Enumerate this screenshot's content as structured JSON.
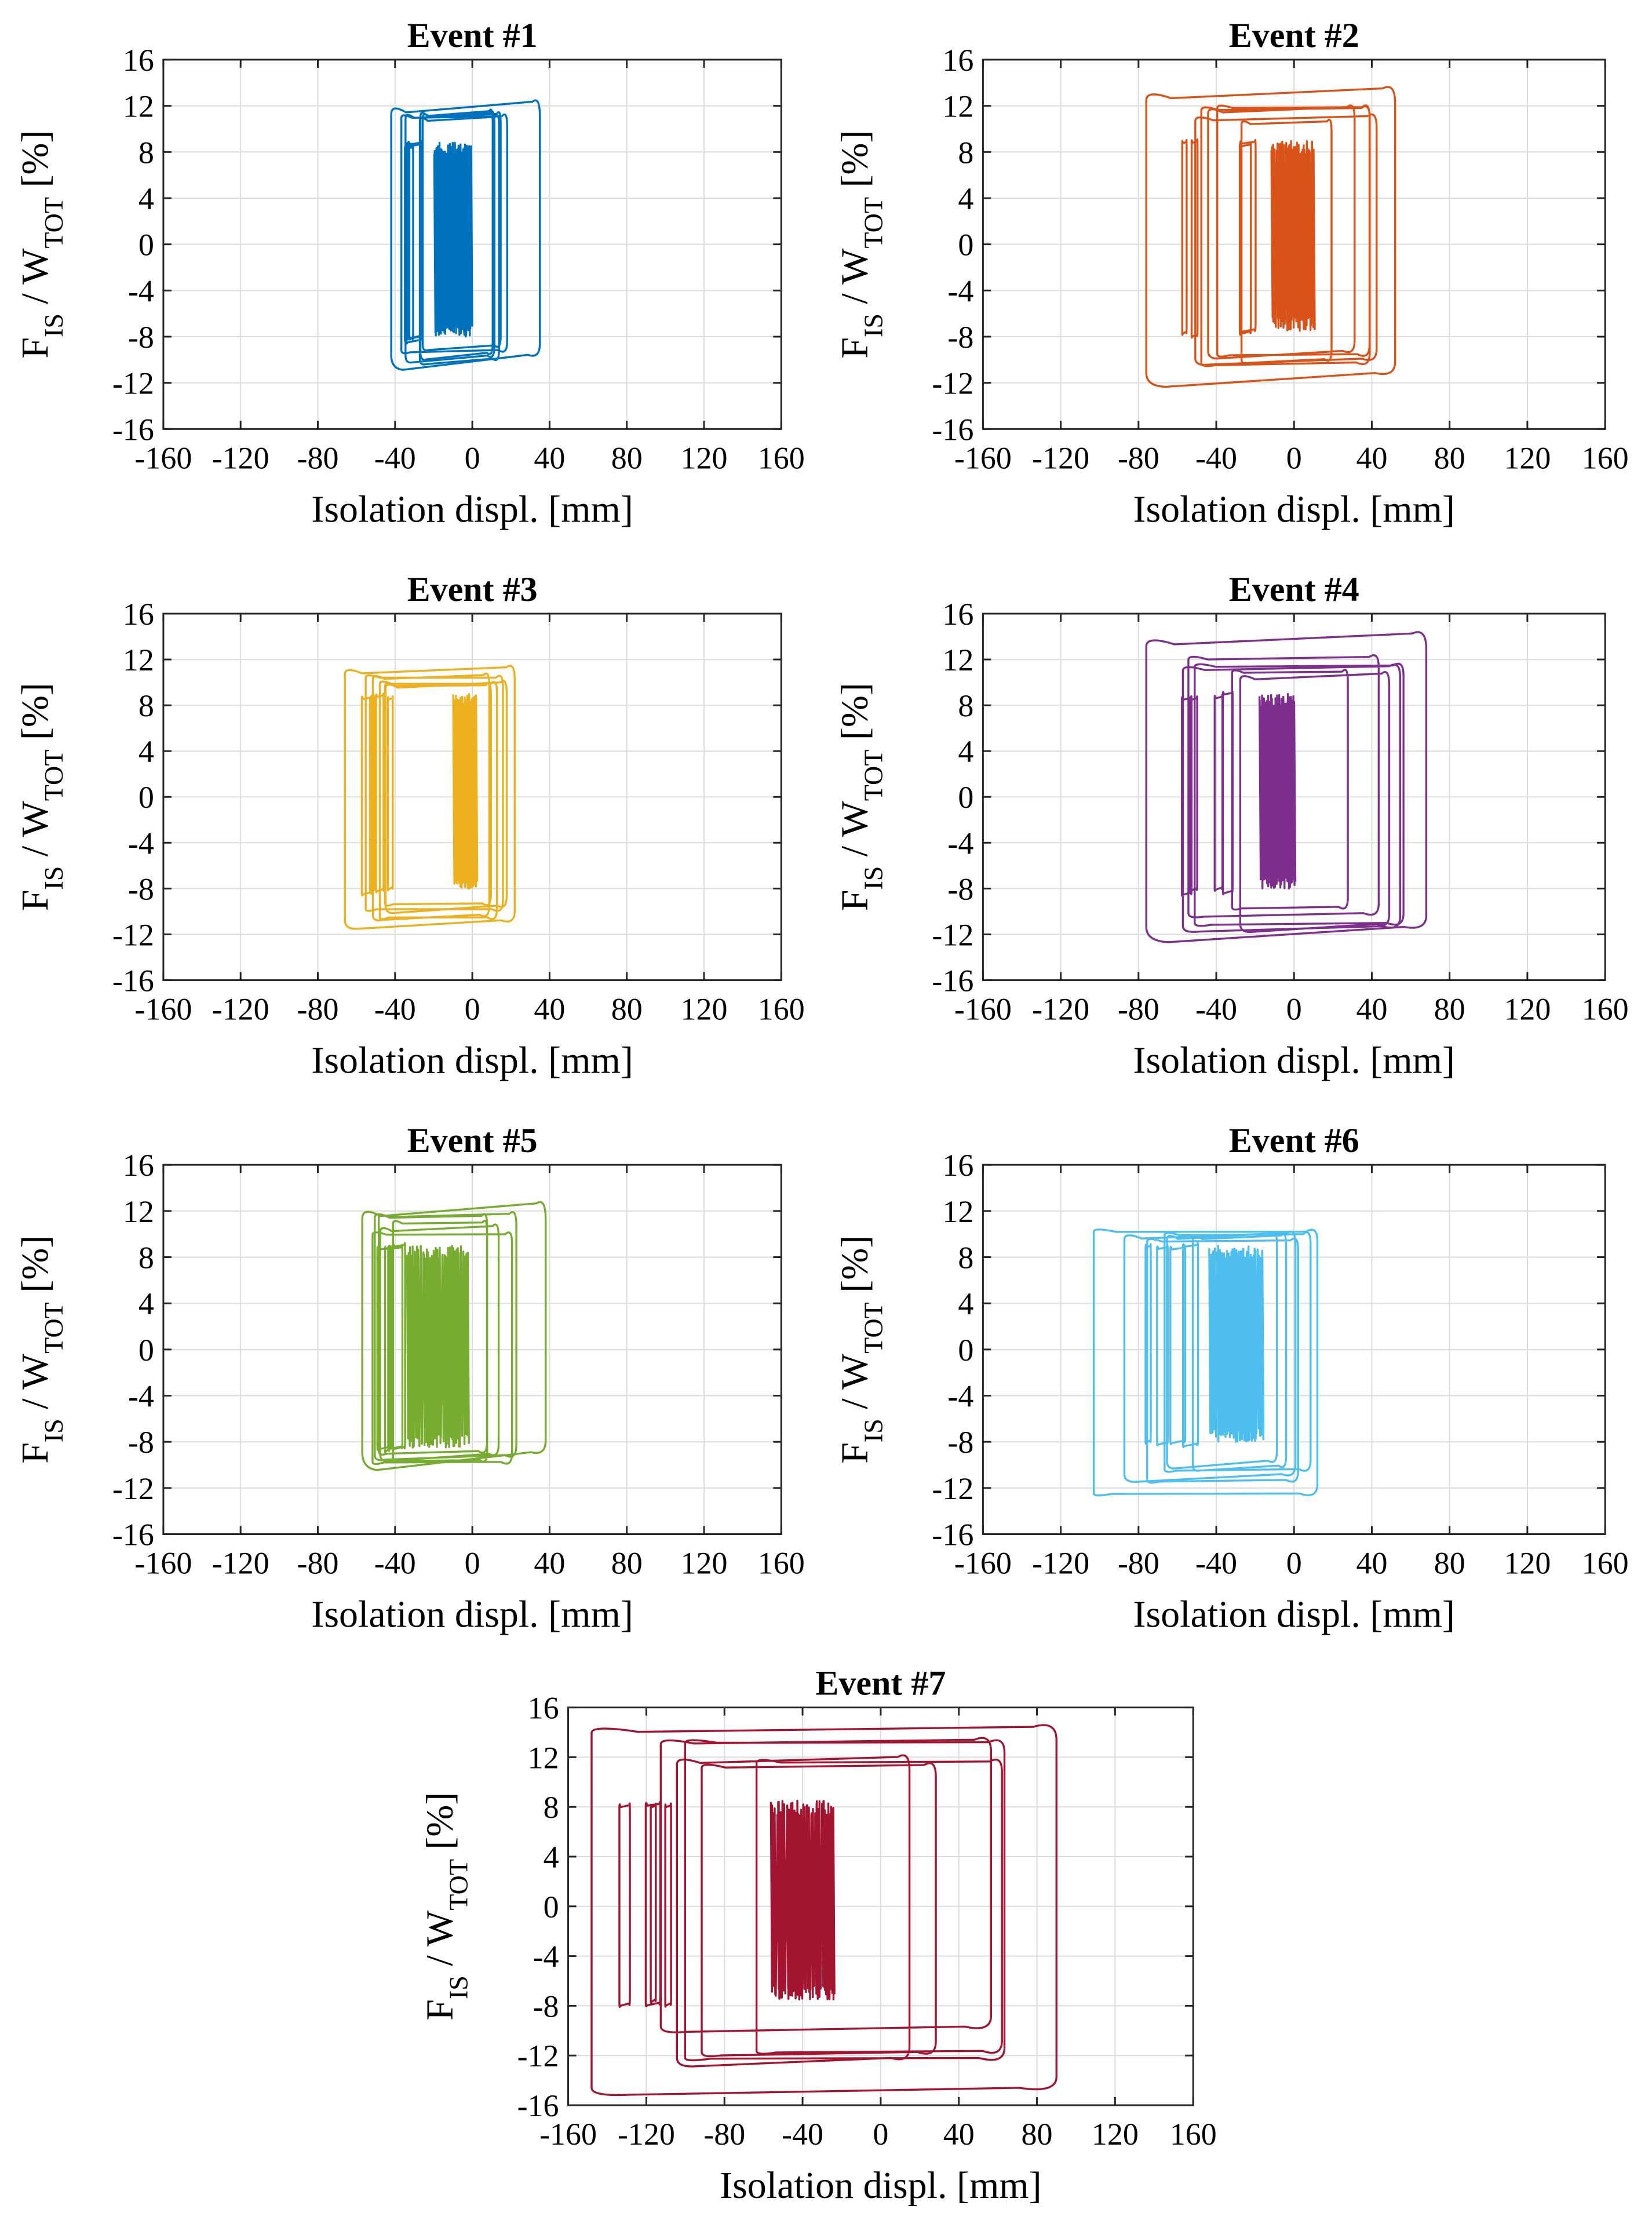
{
  "figure": {
    "x_ticks": [
      -160,
      -120,
      -80,
      -40,
      0,
      40,
      80,
      120,
      160
    ],
    "y_ticks": [
      -16,
      -12,
      -8,
      -4,
      0,
      4,
      8,
      12,
      16
    ],
    "xlabel": "Isolation displ. [mm]",
    "ylabel_parts": {
      "f": "F",
      "f_sub": "IS",
      "sep": " / W",
      "w_sub": "TOT",
      "unit": " [%]"
    }
  },
  "chart_data": [
    {
      "type": "line",
      "title": "Event #1",
      "color": "#0072bd",
      "xlabel": "Isolation displ. [mm]",
      "ylabel": "F_IS / W_TOT [%]",
      "xlim": [
        -160,
        160
      ],
      "ylim": [
        -16,
        16
      ],
      "grid": true,
      "envelope": {
        "x_min": -42,
        "x_max": 35,
        "y_min": -10.5,
        "y_max": 11.8
      },
      "dense_band": {
        "x_min": -20,
        "x_max": -1,
        "y_min": -8,
        "y_max": 8.8
      }
    },
    {
      "type": "line",
      "title": "Event #2",
      "color": "#d95319",
      "xlabel": "Isolation displ. [mm]",
      "ylabel": "F_IS / W_TOT [%]",
      "xlim": [
        -160,
        160
      ],
      "ylim": [
        -16,
        16
      ],
      "grid": true,
      "envelope": {
        "x_min": -76,
        "x_max": 52,
        "y_min": -12,
        "y_max": 13
      },
      "dense_band": {
        "x_min": -12,
        "x_max": 10,
        "y_min": -7.5,
        "y_max": 9
      }
    },
    {
      "type": "line",
      "title": "Event #3",
      "color": "#edb120",
      "xlabel": "Isolation displ. [mm]",
      "ylabel": "F_IS / W_TOT [%]",
      "xlim": [
        -160,
        160
      ],
      "ylim": [
        -16,
        16
      ],
      "grid": true,
      "envelope": {
        "x_min": -66,
        "x_max": 22,
        "y_min": -11.3,
        "y_max": 11
      },
      "dense_band": {
        "x_min": -10,
        "x_max": 2,
        "y_min": -8,
        "y_max": 9
      }
    },
    {
      "type": "line",
      "title": "Event #4",
      "color": "#7e2f8e",
      "xlabel": "Isolation displ. [mm]",
      "ylabel": "F_IS / W_TOT [%]",
      "xlim": [
        -160,
        160
      ],
      "ylim": [
        -16,
        16
      ],
      "grid": true,
      "envelope": {
        "x_min": -76,
        "x_max": 68,
        "y_min": -12.3,
        "y_max": 13.7
      },
      "dense_band": {
        "x_min": -18,
        "x_max": 0,
        "y_min": -8,
        "y_max": 9
      }
    },
    {
      "type": "line",
      "title": "Event #5",
      "color": "#77ac30",
      "xlabel": "Isolation displ. [mm]",
      "ylabel": "F_IS / W_TOT [%]",
      "xlim": [
        -160,
        160
      ],
      "ylim": [
        -16,
        16
      ],
      "grid": true,
      "envelope": {
        "x_min": -57,
        "x_max": 38,
        "y_min": -10,
        "y_max": 12
      },
      "dense_band": {
        "x_min": -34,
        "x_max": -2,
        "y_min": -8.5,
        "y_max": 9
      }
    },
    {
      "type": "line",
      "title": "Event #6",
      "color": "#4dbeee",
      "xlabel": "Isolation displ. [mm]",
      "ylabel": "F_IS / W_TOT [%]",
      "xlim": [
        -160,
        160
      ],
      "ylim": [
        -16,
        16
      ],
      "grid": true,
      "envelope": {
        "x_min": -103,
        "x_max": 12,
        "y_min": -12.5,
        "y_max": 10.2
      },
      "dense_band": {
        "x_min": -44,
        "x_max": -16,
        "y_min": -8,
        "y_max": 9
      }
    },
    {
      "type": "line",
      "title": "Event #7",
      "color": "#a2142f",
      "xlabel": "Isolation displ. [mm]",
      "ylabel": "F_IS / W_TOT [%]",
      "xlim": [
        -160,
        160
      ],
      "ylim": [
        -16,
        16
      ],
      "grid": true,
      "envelope": {
        "x_min": -148,
        "x_max": 90,
        "y_min": -15,
        "y_max": 14.2
      },
      "dense_band": {
        "x_min": -56,
        "x_max": -24,
        "y_min": -7.5,
        "y_max": 8.5
      }
    }
  ]
}
